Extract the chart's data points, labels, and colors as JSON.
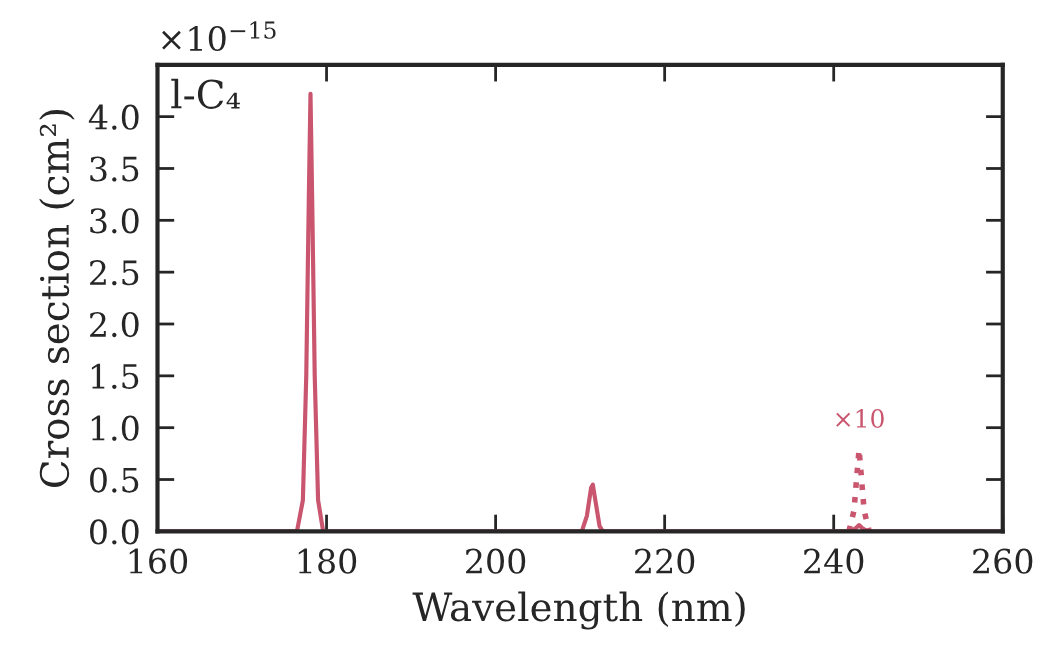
{
  "chart_data": {
    "type": "line",
    "xlabel": "Wavelength (nm)",
    "ylabel": "Cross section (cm²)",
    "xlim": [
      160,
      260
    ],
    "xticks": [
      160,
      180,
      200,
      220,
      240,
      260
    ],
    "ylim": [
      0,
      4.5
    ],
    "yticks": [
      {
        "value": 0,
        "label": "0.0"
      },
      {
        "value": 0.5,
        "label": "0.5"
      },
      {
        "value": 1,
        "label": "1.0"
      },
      {
        "value": 1.5,
        "label": "1.5"
      },
      {
        "value": 2,
        "label": "2.0"
      },
      {
        "value": 2.5,
        "label": "2.5"
      },
      {
        "value": 3,
        "label": "3.0"
      },
      {
        "value": 3.5,
        "label": "3.5"
      },
      {
        "value": 4,
        "label": "4.0"
      }
    ],
    "grid": false,
    "legend": false,
    "series": [
      {
        "color": "#c9566e",
        "line_style": "solid",
        "x": [
          160,
          176.5,
          177.2,
          177.6,
          177.9,
          178.1,
          178.3,
          178.6,
          179.0,
          179.6,
          210.2,
          210.8,
          211.3,
          211.5,
          211.8,
          212.3,
          212.7,
          242,
          242.6,
          243,
          243.4,
          244,
          260
        ],
        "values": [
          0,
          0,
          0.3,
          1.5,
          3.2,
          4.22,
          3.2,
          1.5,
          0.3,
          0,
          0,
          0.15,
          0.42,
          0.45,
          0.3,
          0.05,
          0,
          0,
          0.03,
          0.06,
          0.03,
          0,
          0
        ]
      },
      {
        "color": "#c9566e",
        "line_style": "dotted",
        "x": [
          241.8,
          242.4,
          242.8,
          243.0,
          243.2,
          243.6,
          244.2
        ],
        "values": [
          0,
          0.2,
          0.6,
          0.79,
          0.6,
          0.2,
          0
        ]
      }
    ],
    "annotations": [
      "×10$^{−15}$",
      "l-C₄",
      {
        "text": "×10",
        "x": 243,
        "y": 0.79
      }
    ]
  }
}
